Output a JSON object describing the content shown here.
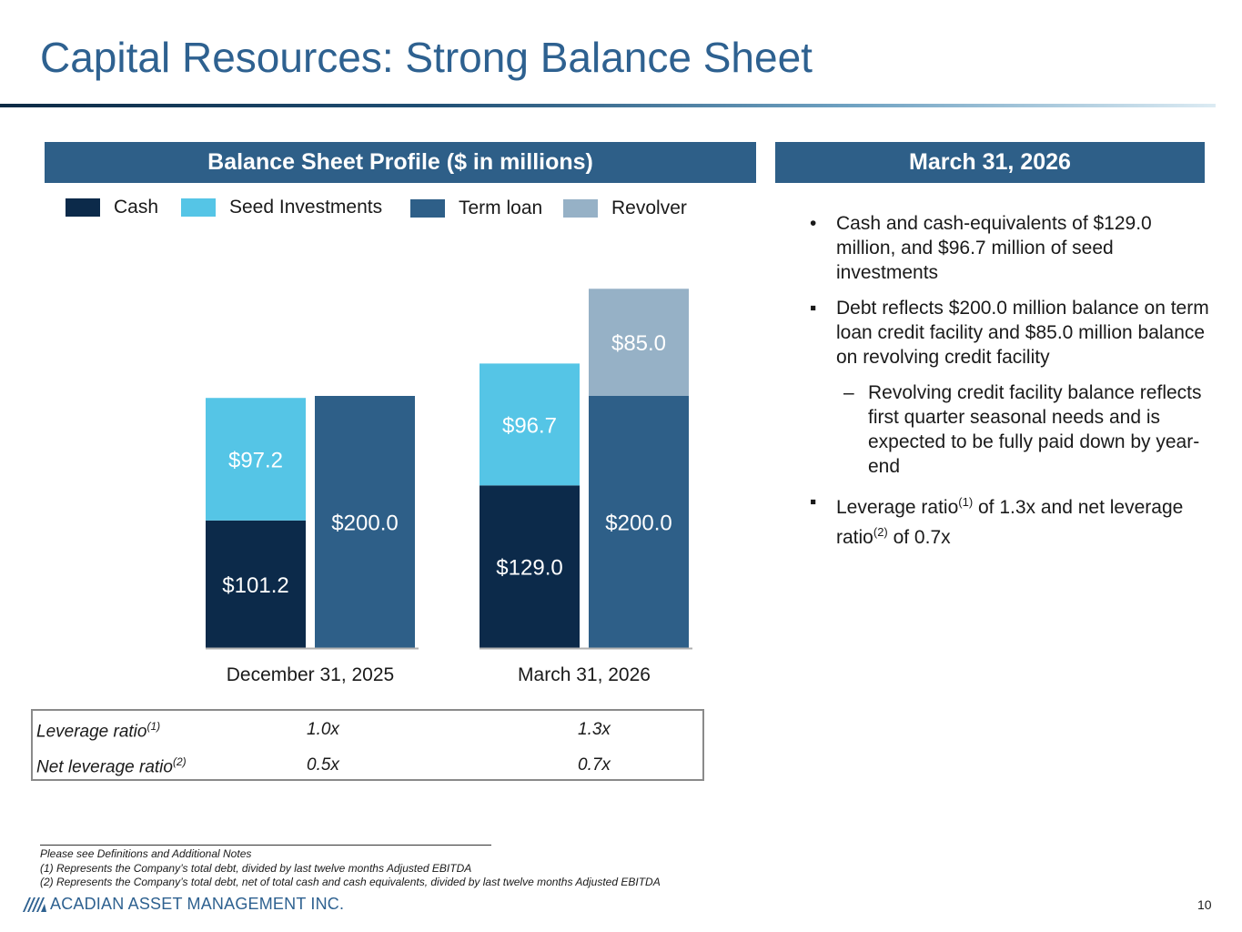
{
  "title": "Capital Resources: Strong Balance Sheet",
  "left_panel": {
    "header": "Balance Sheet Profile ($ in millions)"
  },
  "right_panel": {
    "header": "March 31, 2026",
    "bullets": [
      {
        "marker": "•",
        "text": "Cash and cash-equivalents of $129.0 million, and $96.7 million of seed investments"
      },
      {
        "marker": "▪",
        "text": "Debt reflects $200.0 million balance on term loan credit facility and $85.0 million balance on revolving credit facility"
      },
      {
        "marker": "–",
        "text": "Revolving credit facility balance reflects first quarter seasonal needs and is expected to be fully paid down by year-end"
      },
      {
        "marker": "▪",
        "text_a": "Leverage ratio",
        "sup_a": "(1)",
        "text_b": " of 1.3x and net leverage ratio",
        "sup_b": "(2)",
        "text_c": " of 0.7x"
      }
    ]
  },
  "chart_data": {
    "type": "bar",
    "subtype": "stacked-grouped",
    "categories": [
      "December 31, 2025",
      "March 31, 2026"
    ],
    "legend_position": "top",
    "series": [
      {
        "name": "Cash",
        "color": "#0c2a4a",
        "values": [
          101.2,
          129.0
        ],
        "labels": [
          "$101.2",
          "$129.0"
        ],
        "stack": "assets"
      },
      {
        "name": "Seed Investments",
        "color": "#55c5e6",
        "values": [
          97.2,
          96.7
        ],
        "labels": [
          "$97.2",
          "$96.7"
        ],
        "stack": "assets"
      },
      {
        "name": "Term loan",
        "color": "#2e5f88",
        "values": [
          200.0,
          200.0
        ],
        "labels": [
          "$200.0",
          "$200.0"
        ],
        "stack": "debt"
      },
      {
        "name": "Revolver",
        "color": "#96b1c6",
        "values": [
          0,
          85.0
        ],
        "labels": [
          "",
          "$85.0"
        ],
        "stack": "debt"
      }
    ],
    "gridlines": false
  },
  "ratios": {
    "rows": [
      {
        "label": "Leverage ratio",
        "sup": "(1)",
        "values": [
          "1.0x",
          "1.3x"
        ]
      },
      {
        "label": "Net leverage ratio",
        "sup": "(2)",
        "values": [
          "0.5x",
          "0.7x"
        ]
      }
    ]
  },
  "footnotes": [
    "Please see Definitions and Additional Notes",
    "(1) Represents the Company’s total debt, divided by last twelve months Adjusted EBITDA",
    "(2) Represents the Company’s total debt, net of total cash and cash equivalents, divided by last twelve months Adjusted EBITDA"
  ],
  "logo": {
    "text": "ACADIAN ASSET MANAGEMENT INC.",
    "icon": "acadian-logo-icon"
  },
  "page_number": "10"
}
